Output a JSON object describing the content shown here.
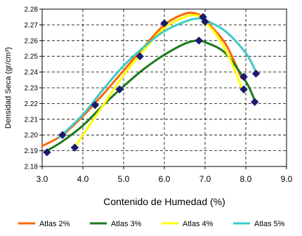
{
  "chart_data": {
    "type": "line",
    "title": "",
    "xlabel": "Contenido de Humedad (%)",
    "ylabel": "Densidad Seca (gr/cm³)",
    "xlim": [
      3.0,
      9.0
    ],
    "ylim": [
      2.18,
      2.28
    ],
    "x_ticks": [
      "3.0",
      "4.0",
      "5.0",
      "6.0",
      "7.0",
      "8.0",
      "9.0"
    ],
    "y_ticks": [
      "2.18",
      "2.19",
      "2.20",
      "2.21",
      "2.22",
      "2.23",
      "2.24",
      "2.25",
      "2.26",
      "2.27",
      "2.28"
    ],
    "grid": true,
    "legend_position": "bottom",
    "points": [
      {
        "x": 3.12,
        "y": 2.189
      },
      {
        "x": 3.5,
        "y": 2.2
      },
      {
        "x": 3.8,
        "y": 2.192
      },
      {
        "x": 4.3,
        "y": 2.219
      },
      {
        "x": 4.9,
        "y": 2.229
      },
      {
        "x": 5.4,
        "y": 2.25
      },
      {
        "x": 6.0,
        "y": 2.271
      },
      {
        "x": 6.85,
        "y": 2.26
      },
      {
        "x": 6.95,
        "y": 2.275
      },
      {
        "x": 7.0,
        "y": 2.272
      },
      {
        "x": 7.95,
        "y": 2.229
      },
      {
        "x": 7.95,
        "y": 2.237
      },
      {
        "x": 8.22,
        "y": 2.221
      },
      {
        "x": 8.25,
        "y": 2.239
      }
    ],
    "series": [
      {
        "name": "Atlas 2%",
        "color": "#ff6600",
        "x": [
          3.0,
          3.5,
          4.0,
          4.5,
          5.0,
          5.5,
          6.0,
          6.5,
          6.8,
          7.0,
          7.5,
          7.9
        ],
        "y": [
          2.193,
          2.2,
          2.212,
          2.226,
          2.241,
          2.256,
          2.27,
          2.277,
          2.277,
          2.273,
          2.258,
          2.236
        ]
      },
      {
        "name": "Atlas 3%",
        "color": "#1a7a1a",
        "x": [
          3.12,
          3.5,
          4.0,
          4.5,
          5.0,
          5.5,
          6.0,
          6.5,
          6.8,
          7.0,
          7.5,
          8.0,
          8.22
        ],
        "y": [
          2.19,
          2.196,
          2.206,
          2.219,
          2.231,
          2.242,
          2.251,
          2.258,
          2.26,
          2.259,
          2.252,
          2.234,
          2.222
        ]
      },
      {
        "name": "Atlas 4%",
        "color": "#ffff00",
        "x": [
          3.8,
          4.0,
          4.5,
          5.0,
          5.5,
          6.0,
          6.5,
          6.8,
          7.0,
          7.3,
          7.6,
          7.95
        ],
        "y": [
          2.192,
          2.2,
          2.219,
          2.238,
          2.254,
          2.268,
          2.275,
          2.276,
          2.272,
          2.263,
          2.249,
          2.227
        ]
      },
      {
        "name": "Atlas 5%",
        "color": "#3fc8c8",
        "x": [
          3.4,
          4.0,
          4.5,
          5.0,
          5.5,
          6.0,
          6.5,
          6.8,
          7.0,
          7.5,
          8.0,
          8.25
        ],
        "y": [
          2.198,
          2.213,
          2.229,
          2.244,
          2.256,
          2.266,
          2.272,
          2.274,
          2.273,
          2.266,
          2.252,
          2.24
        ]
      }
    ]
  }
}
